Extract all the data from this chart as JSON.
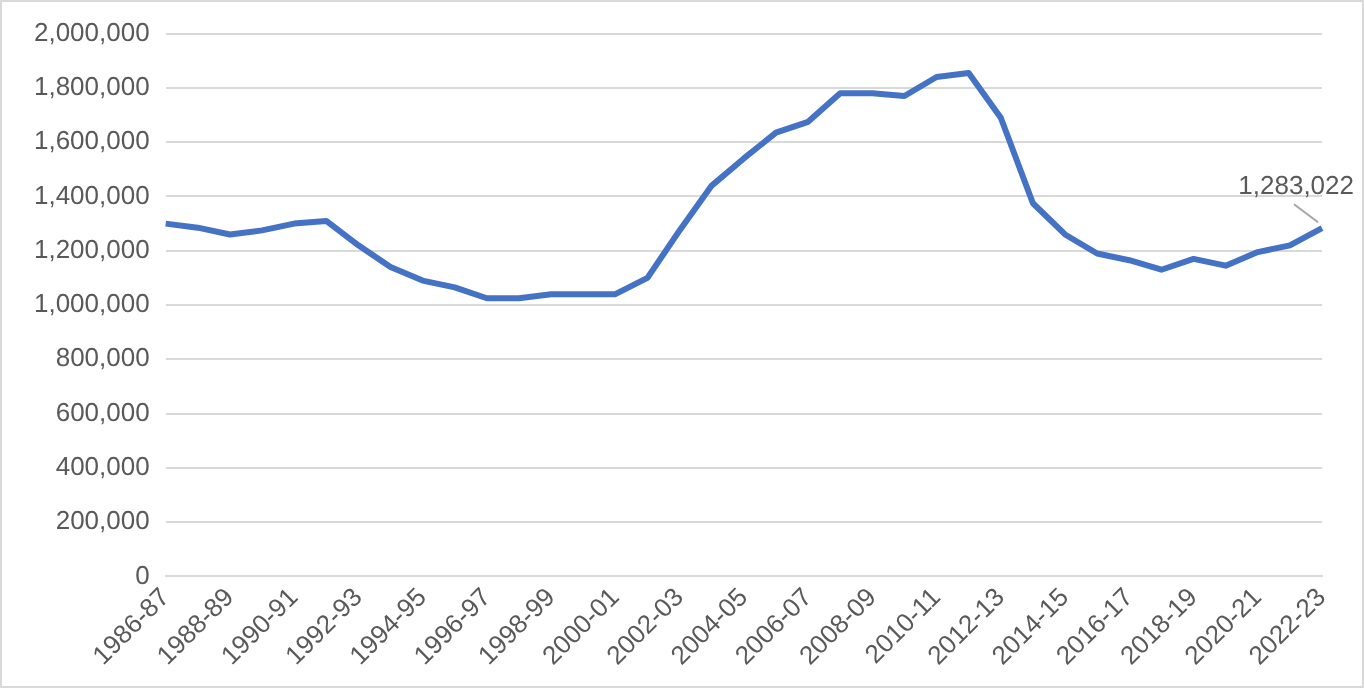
{
  "chart_data": {
    "type": "line",
    "categories": [
      "1986-87",
      null,
      "1988-89",
      null,
      "1990-91",
      null,
      "1992-93",
      null,
      "1994-95",
      null,
      "1996-97",
      null,
      "1998-99",
      null,
      "2000-01",
      null,
      "2002-03",
      null,
      "2004-05",
      null,
      "2006-07",
      null,
      "2008-09",
      null,
      "2010-11",
      null,
      "2012-13",
      null,
      "2014-15",
      null,
      "2016-17",
      null,
      "2018-19",
      null,
      "2020-21",
      null,
      "2022-23"
    ],
    "series": [
      {
        "color": "#4472c4",
        "values": [
          1300000,
          1285000,
          1260000,
          1275000,
          1300000,
          1310000,
          1220000,
          1140000,
          1090000,
          1065000,
          1025000,
          1025000,
          1040000,
          1040000,
          1040000,
          1100000,
          1275000,
          1440000,
          1540000,
          1635000,
          1675000,
          1780000,
          1780000,
          1770000,
          1840000,
          1855000,
          1690000,
          1375000,
          1260000,
          1190000,
          1165000,
          1130000,
          1170000,
          1145000,
          1195000,
          1220000,
          1283022
        ],
        "value_labels": [
          null,
          null,
          null,
          null,
          null,
          null,
          null,
          null,
          null,
          null,
          null,
          null,
          null,
          null,
          null,
          null,
          null,
          null,
          null,
          null,
          null,
          null,
          null,
          null,
          null,
          null,
          null,
          null,
          null,
          null,
          null,
          null,
          null,
          null,
          null,
          null,
          "1,283,022"
        ]
      }
    ],
    "ylim": [
      0,
      2000000
    ],
    "yticks": [
      0,
      {
        "value": 200000,
        "label": "200,000"
      },
      {
        "value": 400000,
        "label": "400,000"
      },
      {
        "value": 600000,
        "label": "600,000"
      },
      {
        "value": 800000,
        "label": "800,000"
      },
      {
        "value": 1000000,
        "label": "1,000,000"
      },
      {
        "value": 1200000,
        "label": "1,200,000"
      },
      {
        "value": 1400000,
        "label": "1,400,000"
      },
      {
        "value": 1600000,
        "label": "1,600,000"
      },
      {
        "value": 1800000,
        "label": "1,800,000"
      },
      {
        "value": 2000000,
        "label": "2,000,000"
      }
    ],
    "grid": "y",
    "legend": false
  }
}
